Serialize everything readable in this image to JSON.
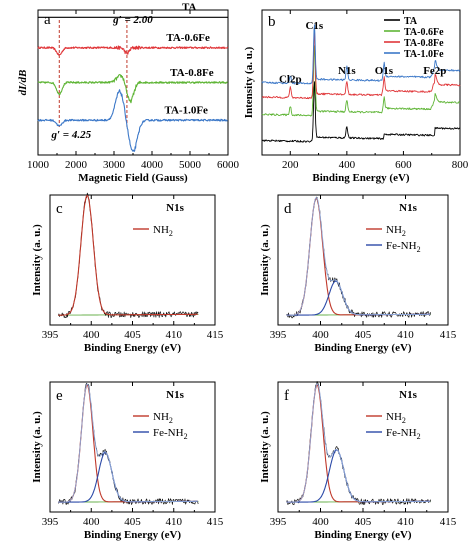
{
  "chart_data": [
    {
      "id": "a",
      "type": "line",
      "panel_label": "a",
      "xlabel": "Magnetic Field (Gauss)",
      "ylabel": "dI/dB",
      "xlim": [
        1000,
        6000
      ],
      "xticks": [
        1000,
        2000,
        3000,
        4000,
        5000,
        6000
      ],
      "tick_labels": [
        "1000",
        "2000",
        "3000",
        "4000",
        "5000",
        "6000"
      ],
      "show_y_ticks": false,
      "annotations": [
        {
          "text": "g′ = 2.00",
          "x": 3340
        },
        {
          "text": "g′ = 4.25",
          "x": 1560
        }
      ],
      "series": [
        {
          "name": "TA",
          "color": "#000000",
          "offset": 0.95,
          "features": []
        },
        {
          "name": "TA-0.6Fe",
          "color": "#e0373a",
          "offset": 0.74,
          "features": [
            [
              1560,
              -0.05,
              70
            ],
            [
              3340,
              -0.04,
              60
            ]
          ]
        },
        {
          "name": "TA-0.8Fe",
          "color": "#5fb536",
          "offset": 0.5,
          "features": [
            [
              1560,
              -0.08,
              70
            ],
            [
              3200,
              0.05,
              120
            ],
            [
              3420,
              -0.14,
              90
            ]
          ]
        },
        {
          "name": "TA-1.0Fe",
          "color": "#3c78c8",
          "offset": 0.24,
          "features": [
            [
              1560,
              -0.04,
              70
            ],
            [
              3150,
              0.2,
              110
            ],
            [
              3500,
              -0.22,
              110
            ]
          ]
        }
      ]
    },
    {
      "id": "b",
      "type": "line",
      "panel_label": "b",
      "xlabel": "Binding Energy (eV)",
      "ylabel": "Intensity (a. u.)",
      "xlim": [
        100,
        800
      ],
      "xticks": [
        200,
        400,
        600,
        800
      ],
      "tick_labels": [
        "200",
        "400",
        "600",
        "800"
      ],
      "show_y_ticks": false,
      "legend": {
        "position": "top-right"
      },
      "peak_labels": [
        {
          "text": "Cl2p",
          "x": 200
        },
        {
          "text": "C1s",
          "x": 285
        },
        {
          "text": "N1s",
          "x": 400
        },
        {
          "text": "O1s",
          "x": 531
        },
        {
          "text": "Fe2p",
          "x": 711
        }
      ],
      "series": [
        {
          "name": "TA",
          "color": "#000000",
          "offset": 0.1,
          "features": [
            [
              285,
              0.4,
              3
            ],
            [
              400,
              0.08,
              3
            ]
          ]
        },
        {
          "name": "TA-0.6Fe",
          "color": "#5fb536",
          "offset": 0.28,
          "features": [
            [
              200,
              0.06,
              3
            ],
            [
              285,
              0.48,
              3
            ],
            [
              400,
              0.08,
              3
            ],
            [
              531,
              0.08,
              3
            ],
            [
              711,
              0.06,
              6
            ]
          ]
        },
        {
          "name": "TA-0.8Fe",
          "color": "#e0373a",
          "offset": 0.4,
          "features": [
            [
              200,
              0.07,
              3
            ],
            [
              285,
              0.45,
              3
            ],
            [
              400,
              0.09,
              3
            ],
            [
              531,
              0.1,
              3
            ],
            [
              711,
              0.07,
              6
            ]
          ]
        },
        {
          "name": "TA-1.0Fe",
          "color": "#3c78c8",
          "offset": 0.5,
          "features": [
            [
              200,
              0.05,
              3
            ],
            [
              285,
              0.4,
              3
            ],
            [
              400,
              0.09,
              3
            ],
            [
              531,
              0.1,
              3
            ],
            [
              711,
              0.07,
              6
            ]
          ]
        }
      ]
    },
    {
      "id": "c",
      "type": "line",
      "panel_label": "c",
      "title": "N1s",
      "xlabel": "Binding Energy (eV)",
      "ylabel": "Intensity (a. u.)",
      "xlim": [
        395,
        415
      ],
      "xticks": [
        395,
        400,
        405,
        410,
        415
      ],
      "tick_labels": [
        "395",
        "400",
        "405",
        "410",
        "415"
      ],
      "show_y_ticks": false,
      "legend": {
        "position": "top-right"
      },
      "components": [
        {
          "name": "NH2",
          "label_main": "NH",
          "label_sub": "2",
          "color": "#c0392b",
          "center": 399.5,
          "height": 0.92,
          "width": 0.75
        }
      ]
    },
    {
      "id": "d",
      "type": "line",
      "panel_label": "d",
      "title": "N1s",
      "xlabel": "Binding Energy (eV)",
      "ylabel": "Intensity (a. u.)",
      "xlim": [
        395,
        415
      ],
      "xticks": [
        395,
        400,
        405,
        410,
        415
      ],
      "tick_labels": [
        "395",
        "400",
        "405",
        "410",
        "415"
      ],
      "show_y_ticks": false,
      "legend": {
        "position": "top-right"
      },
      "components": [
        {
          "name": "NH2",
          "label_main": "NH",
          "label_sub": "2",
          "color": "#c0392b",
          "center": 399.5,
          "height": 0.9,
          "width": 0.75
        },
        {
          "name": "Fe-NH2",
          "label_main": "Fe-NH",
          "label_sub": "2",
          "color": "#2c4aa8",
          "center": 401.8,
          "height": 0.26,
          "width": 0.8
        }
      ]
    },
    {
      "id": "e",
      "type": "line",
      "panel_label": "e",
      "title": "N1s",
      "xlabel": "Binding Energy (eV)",
      "ylabel": "Intensity (a. u.)",
      "xlim": [
        395,
        415
      ],
      "xticks": [
        395,
        400,
        405,
        410,
        415
      ],
      "tick_labels": [
        "395",
        "400",
        "405",
        "410",
        "415"
      ],
      "show_y_ticks": false,
      "legend": {
        "position": "top-right"
      },
      "components": [
        {
          "name": "NH2",
          "label_main": "NH",
          "label_sub": "2",
          "color": "#c0392b",
          "center": 399.5,
          "height": 0.9,
          "width": 0.7
        },
        {
          "name": "Fe-NH2",
          "label_main": "Fe-NH",
          "label_sub": "2",
          "color": "#2c4aa8",
          "center": 401.7,
          "height": 0.38,
          "width": 0.8
        }
      ]
    },
    {
      "id": "f",
      "type": "line",
      "panel_label": "f",
      "title": "N1s",
      "xlabel": "Binding Energy (eV)",
      "ylabel": "Intensity (a. u.)",
      "xlim": [
        395,
        415
      ],
      "xticks": [
        395,
        400,
        405,
        410,
        415
      ],
      "tick_labels": [
        "395",
        "400",
        "405",
        "410",
        "415"
      ],
      "show_y_ticks": false,
      "legend": {
        "position": "top-right"
      },
      "components": [
        {
          "name": "NH2",
          "label_main": "NH",
          "label_sub": "2",
          "color": "#c0392b",
          "center": 399.6,
          "height": 0.9,
          "width": 0.7
        },
        {
          "name": "Fe-NH2",
          "label_main": "Fe-NH",
          "label_sub": "2",
          "color": "#2c4aa8",
          "center": 401.9,
          "height": 0.4,
          "width": 0.85
        }
      ]
    }
  ]
}
